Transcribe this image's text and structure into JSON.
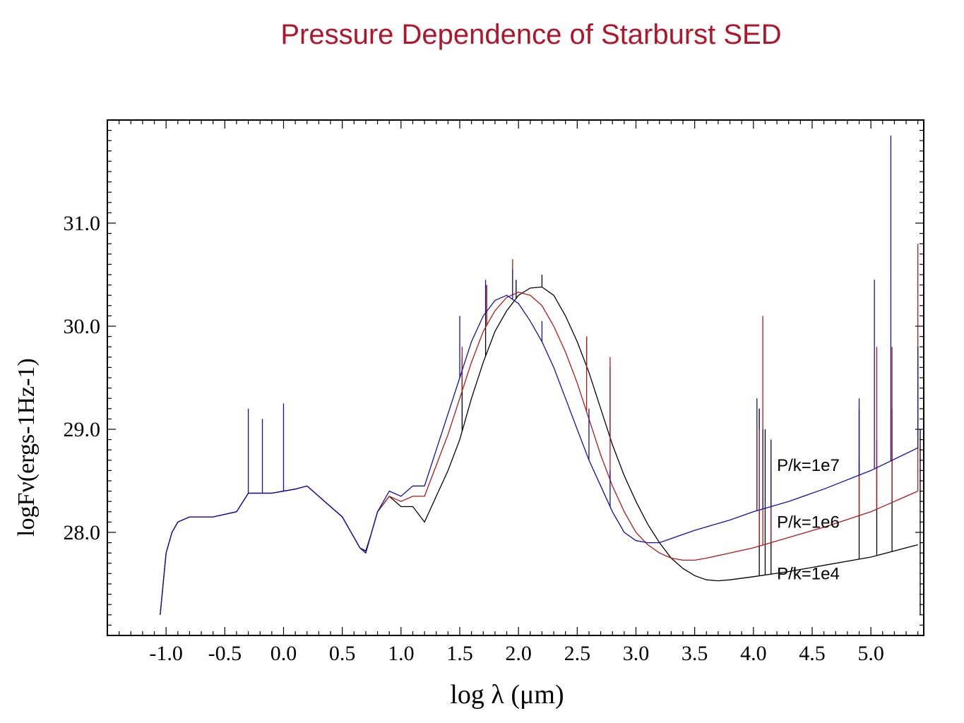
{
  "chart_data": {
    "type": "line",
    "title": "Pressure  Dependence of Starburst SED",
    "xlabel": "log  λ  (μm)",
    "ylabel_glyphs": [
      "l",
      "o",
      "g",
      "F",
      "ν",
      "(",
      "e",
      "r",
      "g",
      "s",
      "-1",
      "H",
      "z",
      "-1",
      ")"
    ],
    "xlim": [
      -1.5,
      5.45
    ],
    "ylim": [
      27.0,
      32.0
    ],
    "x_ticks": [
      "-1.0",
      "-0.5",
      "0.0",
      "0.5",
      "1.0",
      "1.5",
      "2.0",
      "2.5",
      "3.0",
      "3.5",
      "4.0",
      "4.5",
      "5.0"
    ],
    "x_tick_values": [
      -1.0,
      -0.5,
      0.0,
      0.5,
      1.0,
      1.5,
      2.0,
      2.5,
      3.0,
      3.5,
      4.0,
      4.5,
      5.0
    ],
    "y_ticks": [
      "28.0",
      "29.0",
      "30.0",
      "31.0"
    ],
    "y_tick_values": [
      28.0,
      29.0,
      30.0,
      31.0
    ],
    "colors": {
      "title": "#b0162a",
      "p1e4": "#000000",
      "p1e6": "#b01818",
      "p1e7": "#1010a8",
      "axis": "#000000"
    },
    "series": [
      {
        "name": "P/k=1e4",
        "color_key": "p1e4",
        "label_at": [
          4.2,
          27.6
        ],
        "points": [
          [
            -1.05,
            27.2
          ],
          [
            -1.0,
            27.8
          ],
          [
            -0.95,
            28.0
          ],
          [
            -0.9,
            28.1
          ],
          [
            -0.8,
            28.15
          ],
          [
            -0.6,
            28.15
          ],
          [
            -0.4,
            28.2
          ],
          [
            -0.3,
            28.38
          ],
          [
            -0.1,
            28.38
          ],
          [
            0.1,
            28.42
          ],
          [
            0.2,
            28.45
          ],
          [
            0.35,
            28.3
          ],
          [
            0.5,
            28.15
          ],
          [
            0.6,
            27.95
          ],
          [
            0.65,
            27.85
          ],
          [
            0.7,
            27.82
          ],
          [
            0.75,
            28.0
          ],
          [
            0.8,
            28.2
          ],
          [
            0.9,
            28.35
          ],
          [
            1.0,
            28.25
          ],
          [
            1.1,
            28.25
          ],
          [
            1.2,
            28.1
          ],
          [
            1.3,
            28.35
          ],
          [
            1.4,
            28.6
          ],
          [
            1.5,
            28.9
          ],
          [
            1.6,
            29.3
          ],
          [
            1.7,
            29.65
          ],
          [
            1.8,
            29.95
          ],
          [
            1.9,
            30.15
          ],
          [
            2.0,
            30.3
          ],
          [
            2.1,
            30.37
          ],
          [
            2.2,
            30.38
          ],
          [
            2.3,
            30.3
          ],
          [
            2.4,
            30.1
          ],
          [
            2.5,
            29.85
          ],
          [
            2.6,
            29.55
          ],
          [
            2.7,
            29.2
          ],
          [
            2.8,
            28.85
          ],
          [
            2.9,
            28.55
          ],
          [
            3.0,
            28.3
          ],
          [
            3.1,
            28.08
          ],
          [
            3.2,
            27.9
          ],
          [
            3.3,
            27.75
          ],
          [
            3.4,
            27.65
          ],
          [
            3.5,
            27.58
          ],
          [
            3.6,
            27.54
          ],
          [
            3.7,
            27.53
          ],
          [
            3.8,
            27.54
          ],
          [
            4.0,
            27.57
          ],
          [
            4.3,
            27.62
          ],
          [
            4.6,
            27.68
          ],
          [
            5.0,
            27.76
          ],
          [
            5.4,
            27.88
          ]
        ],
        "lines": [
          [
            1.52,
            29.7
          ],
          [
            1.72,
            30.4
          ],
          [
            1.98,
            30.45
          ],
          [
            2.2,
            30.5
          ],
          [
            2.58,
            29.9
          ],
          [
            2.78,
            29.6
          ],
          [
            4.05,
            29.2
          ],
          [
            4.1,
            29.0
          ],
          [
            4.15,
            28.6
          ],
          [
            4.9,
            29.2
          ],
          [
            5.05,
            28.9
          ],
          [
            5.18,
            29.2
          ],
          [
            5.42,
            29.0
          ]
        ]
      },
      {
        "name": "P/k=1e6",
        "color_key": "p1e6",
        "label_at": [
          4.2,
          28.1
        ],
        "points": [
          [
            -1.05,
            27.2
          ],
          [
            -1.0,
            27.8
          ],
          [
            -0.95,
            28.0
          ],
          [
            -0.9,
            28.1
          ],
          [
            -0.8,
            28.15
          ],
          [
            -0.6,
            28.15
          ],
          [
            -0.4,
            28.2
          ],
          [
            -0.3,
            28.38
          ],
          [
            -0.1,
            28.38
          ],
          [
            0.1,
            28.42
          ],
          [
            0.2,
            28.45
          ],
          [
            0.35,
            28.3
          ],
          [
            0.5,
            28.15
          ],
          [
            0.6,
            27.95
          ],
          [
            0.65,
            27.85
          ],
          [
            0.7,
            27.8
          ],
          [
            0.75,
            28.0
          ],
          [
            0.8,
            28.2
          ],
          [
            0.9,
            28.35
          ],
          [
            1.0,
            28.3
          ],
          [
            1.1,
            28.35
          ],
          [
            1.2,
            28.35
          ],
          [
            1.3,
            28.65
          ],
          [
            1.4,
            28.95
          ],
          [
            1.5,
            29.3
          ],
          [
            1.6,
            29.65
          ],
          [
            1.7,
            29.95
          ],
          [
            1.8,
            30.15
          ],
          [
            1.9,
            30.28
          ],
          [
            2.0,
            30.33
          ],
          [
            2.1,
            30.3
          ],
          [
            2.2,
            30.2
          ],
          [
            2.3,
            30.0
          ],
          [
            2.4,
            29.75
          ],
          [
            2.5,
            29.45
          ],
          [
            2.6,
            29.1
          ],
          [
            2.7,
            28.75
          ],
          [
            2.8,
            28.45
          ],
          [
            2.9,
            28.2
          ],
          [
            3.0,
            28.0
          ],
          [
            3.1,
            27.88
          ],
          [
            3.2,
            27.8
          ],
          [
            3.3,
            27.75
          ],
          [
            3.4,
            27.73
          ],
          [
            3.5,
            27.73
          ],
          [
            3.6,
            27.75
          ],
          [
            3.8,
            27.8
          ],
          [
            4.0,
            27.85
          ],
          [
            4.3,
            27.95
          ],
          [
            4.6,
            28.05
          ],
          [
            5.0,
            28.2
          ],
          [
            5.4,
            28.4
          ]
        ],
        "lines": [
          [
            1.52,
            29.8
          ],
          [
            1.73,
            30.4
          ],
          [
            1.95,
            30.65
          ],
          [
            2.58,
            29.9
          ],
          [
            2.78,
            29.7
          ],
          [
            4.05,
            29.0
          ],
          [
            4.08,
            30.1
          ],
          [
            4.15,
            28.9
          ],
          [
            4.9,
            28.7
          ],
          [
            5.05,
            29.8
          ],
          [
            5.18,
            29.8
          ],
          [
            5.4,
            30.8
          ]
        ]
      },
      {
        "name": "P/k=1e7",
        "color_key": "p1e7",
        "label_at": [
          4.2,
          28.65
        ],
        "points": [
          [
            -1.05,
            27.2
          ],
          [
            -1.0,
            27.8
          ],
          [
            -0.95,
            28.0
          ],
          [
            -0.9,
            28.1
          ],
          [
            -0.8,
            28.15
          ],
          [
            -0.6,
            28.15
          ],
          [
            -0.4,
            28.2
          ],
          [
            -0.3,
            28.38
          ],
          [
            -0.1,
            28.38
          ],
          [
            0.1,
            28.42
          ],
          [
            0.2,
            28.45
          ],
          [
            0.35,
            28.3
          ],
          [
            0.5,
            28.15
          ],
          [
            0.6,
            27.95
          ],
          [
            0.65,
            27.85
          ],
          [
            0.7,
            27.8
          ],
          [
            0.75,
            28.0
          ],
          [
            0.8,
            28.2
          ],
          [
            0.9,
            28.4
          ],
          [
            1.0,
            28.35
          ],
          [
            1.1,
            28.45
          ],
          [
            1.2,
            28.45
          ],
          [
            1.3,
            28.8
          ],
          [
            1.4,
            29.15
          ],
          [
            1.5,
            29.5
          ],
          [
            1.6,
            29.85
          ],
          [
            1.7,
            30.1
          ],
          [
            1.8,
            30.25
          ],
          [
            1.9,
            30.3
          ],
          [
            2.0,
            30.22
          ],
          [
            2.1,
            30.05
          ],
          [
            2.2,
            29.85
          ],
          [
            2.3,
            29.6
          ],
          [
            2.4,
            29.3
          ],
          [
            2.5,
            29.0
          ],
          [
            2.6,
            28.7
          ],
          [
            2.7,
            28.45
          ],
          [
            2.8,
            28.2
          ],
          [
            2.9,
            28.0
          ],
          [
            3.0,
            27.92
          ],
          [
            3.1,
            27.9
          ],
          [
            3.2,
            27.9
          ],
          [
            3.3,
            27.94
          ],
          [
            3.5,
            28.02
          ],
          [
            3.8,
            28.12
          ],
          [
            4.0,
            28.2
          ],
          [
            4.3,
            28.3
          ],
          [
            4.6,
            28.42
          ],
          [
            5.0,
            28.6
          ],
          [
            5.4,
            28.82
          ]
        ],
        "lines": [
          [
            -0.3,
            29.2
          ],
          [
            -0.18,
            29.1
          ],
          [
            0.0,
            29.25
          ],
          [
            1.5,
            30.1
          ],
          [
            1.72,
            30.45
          ],
          [
            1.95,
            30.55
          ],
          [
            2.2,
            30.05
          ],
          [
            2.6,
            29.2
          ],
          [
            2.78,
            28.6
          ],
          [
            4.03,
            29.3
          ],
          [
            4.08,
            29.0
          ],
          [
            4.15,
            28.9
          ],
          [
            4.9,
            29.3
          ],
          [
            5.03,
            30.45
          ],
          [
            5.17,
            31.85
          ],
          [
            5.4,
            29.8
          ]
        ]
      }
    ]
  }
}
